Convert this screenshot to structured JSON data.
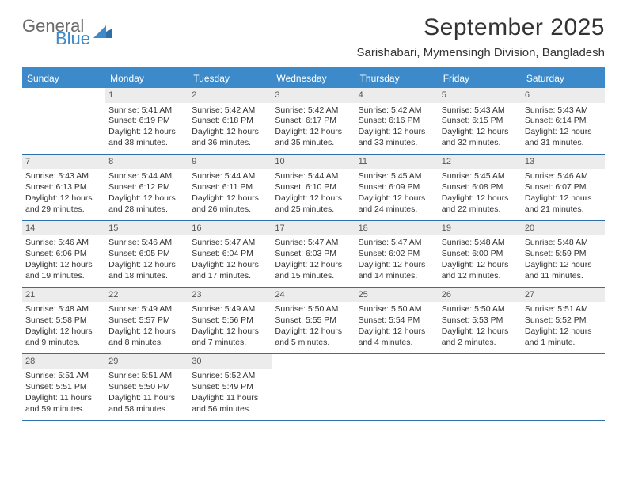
{
  "logo": {
    "word1": "General",
    "word2": "Blue",
    "shape_color": "#2f6fa8"
  },
  "title": "September 2025",
  "subtitle": "Sarishabari, Mymensingh Division, Bangladesh",
  "colors": {
    "header_bg": "#3c8ac9",
    "header_text": "#ffffff",
    "rule": "#2f6fa8",
    "daynum_bg": "#ececec",
    "text": "#333333"
  },
  "day_names": [
    "Sunday",
    "Monday",
    "Tuesday",
    "Wednesday",
    "Thursday",
    "Friday",
    "Saturday"
  ],
  "weeks": [
    [
      {
        "n": "",
        "sr": "",
        "ss": "",
        "d1": "",
        "d2": ""
      },
      {
        "n": "1",
        "sr": "Sunrise: 5:41 AM",
        "ss": "Sunset: 6:19 PM",
        "d1": "Daylight: 12 hours",
        "d2": "and 38 minutes."
      },
      {
        "n": "2",
        "sr": "Sunrise: 5:42 AM",
        "ss": "Sunset: 6:18 PM",
        "d1": "Daylight: 12 hours",
        "d2": "and 36 minutes."
      },
      {
        "n": "3",
        "sr": "Sunrise: 5:42 AM",
        "ss": "Sunset: 6:17 PM",
        "d1": "Daylight: 12 hours",
        "d2": "and 35 minutes."
      },
      {
        "n": "4",
        "sr": "Sunrise: 5:42 AM",
        "ss": "Sunset: 6:16 PM",
        "d1": "Daylight: 12 hours",
        "d2": "and 33 minutes."
      },
      {
        "n": "5",
        "sr": "Sunrise: 5:43 AM",
        "ss": "Sunset: 6:15 PM",
        "d1": "Daylight: 12 hours",
        "d2": "and 32 minutes."
      },
      {
        "n": "6",
        "sr": "Sunrise: 5:43 AM",
        "ss": "Sunset: 6:14 PM",
        "d1": "Daylight: 12 hours",
        "d2": "and 31 minutes."
      }
    ],
    [
      {
        "n": "7",
        "sr": "Sunrise: 5:43 AM",
        "ss": "Sunset: 6:13 PM",
        "d1": "Daylight: 12 hours",
        "d2": "and 29 minutes."
      },
      {
        "n": "8",
        "sr": "Sunrise: 5:44 AM",
        "ss": "Sunset: 6:12 PM",
        "d1": "Daylight: 12 hours",
        "d2": "and 28 minutes."
      },
      {
        "n": "9",
        "sr": "Sunrise: 5:44 AM",
        "ss": "Sunset: 6:11 PM",
        "d1": "Daylight: 12 hours",
        "d2": "and 26 minutes."
      },
      {
        "n": "10",
        "sr": "Sunrise: 5:44 AM",
        "ss": "Sunset: 6:10 PM",
        "d1": "Daylight: 12 hours",
        "d2": "and 25 minutes."
      },
      {
        "n": "11",
        "sr": "Sunrise: 5:45 AM",
        "ss": "Sunset: 6:09 PM",
        "d1": "Daylight: 12 hours",
        "d2": "and 24 minutes."
      },
      {
        "n": "12",
        "sr": "Sunrise: 5:45 AM",
        "ss": "Sunset: 6:08 PM",
        "d1": "Daylight: 12 hours",
        "d2": "and 22 minutes."
      },
      {
        "n": "13",
        "sr": "Sunrise: 5:46 AM",
        "ss": "Sunset: 6:07 PM",
        "d1": "Daylight: 12 hours",
        "d2": "and 21 minutes."
      }
    ],
    [
      {
        "n": "14",
        "sr": "Sunrise: 5:46 AM",
        "ss": "Sunset: 6:06 PM",
        "d1": "Daylight: 12 hours",
        "d2": "and 19 minutes."
      },
      {
        "n": "15",
        "sr": "Sunrise: 5:46 AM",
        "ss": "Sunset: 6:05 PM",
        "d1": "Daylight: 12 hours",
        "d2": "and 18 minutes."
      },
      {
        "n": "16",
        "sr": "Sunrise: 5:47 AM",
        "ss": "Sunset: 6:04 PM",
        "d1": "Daylight: 12 hours",
        "d2": "and 17 minutes."
      },
      {
        "n": "17",
        "sr": "Sunrise: 5:47 AM",
        "ss": "Sunset: 6:03 PM",
        "d1": "Daylight: 12 hours",
        "d2": "and 15 minutes."
      },
      {
        "n": "18",
        "sr": "Sunrise: 5:47 AM",
        "ss": "Sunset: 6:02 PM",
        "d1": "Daylight: 12 hours",
        "d2": "and 14 minutes."
      },
      {
        "n": "19",
        "sr": "Sunrise: 5:48 AM",
        "ss": "Sunset: 6:00 PM",
        "d1": "Daylight: 12 hours",
        "d2": "and 12 minutes."
      },
      {
        "n": "20",
        "sr": "Sunrise: 5:48 AM",
        "ss": "Sunset: 5:59 PM",
        "d1": "Daylight: 12 hours",
        "d2": "and 11 minutes."
      }
    ],
    [
      {
        "n": "21",
        "sr": "Sunrise: 5:48 AM",
        "ss": "Sunset: 5:58 PM",
        "d1": "Daylight: 12 hours",
        "d2": "and 9 minutes."
      },
      {
        "n": "22",
        "sr": "Sunrise: 5:49 AM",
        "ss": "Sunset: 5:57 PM",
        "d1": "Daylight: 12 hours",
        "d2": "and 8 minutes."
      },
      {
        "n": "23",
        "sr": "Sunrise: 5:49 AM",
        "ss": "Sunset: 5:56 PM",
        "d1": "Daylight: 12 hours",
        "d2": "and 7 minutes."
      },
      {
        "n": "24",
        "sr": "Sunrise: 5:50 AM",
        "ss": "Sunset: 5:55 PM",
        "d1": "Daylight: 12 hours",
        "d2": "and 5 minutes."
      },
      {
        "n": "25",
        "sr": "Sunrise: 5:50 AM",
        "ss": "Sunset: 5:54 PM",
        "d1": "Daylight: 12 hours",
        "d2": "and 4 minutes."
      },
      {
        "n": "26",
        "sr": "Sunrise: 5:50 AM",
        "ss": "Sunset: 5:53 PM",
        "d1": "Daylight: 12 hours",
        "d2": "and 2 minutes."
      },
      {
        "n": "27",
        "sr": "Sunrise: 5:51 AM",
        "ss": "Sunset: 5:52 PM",
        "d1": "Daylight: 12 hours",
        "d2": "and 1 minute."
      }
    ],
    [
      {
        "n": "28",
        "sr": "Sunrise: 5:51 AM",
        "ss": "Sunset: 5:51 PM",
        "d1": "Daylight: 11 hours",
        "d2": "and 59 minutes."
      },
      {
        "n": "29",
        "sr": "Sunrise: 5:51 AM",
        "ss": "Sunset: 5:50 PM",
        "d1": "Daylight: 11 hours",
        "d2": "and 58 minutes."
      },
      {
        "n": "30",
        "sr": "Sunrise: 5:52 AM",
        "ss": "Sunset: 5:49 PM",
        "d1": "Daylight: 11 hours",
        "d2": "and 56 minutes."
      },
      {
        "n": "",
        "sr": "",
        "ss": "",
        "d1": "",
        "d2": ""
      },
      {
        "n": "",
        "sr": "",
        "ss": "",
        "d1": "",
        "d2": ""
      },
      {
        "n": "",
        "sr": "",
        "ss": "",
        "d1": "",
        "d2": ""
      },
      {
        "n": "",
        "sr": "",
        "ss": "",
        "d1": "",
        "d2": ""
      }
    ]
  ]
}
